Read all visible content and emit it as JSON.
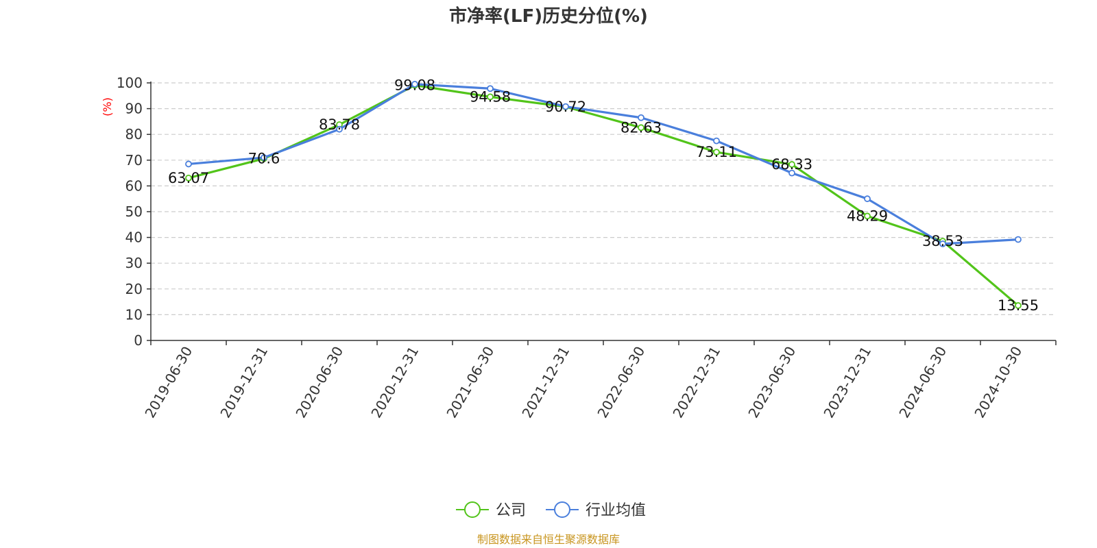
{
  "chart_data": {
    "type": "line",
    "title": "市净率(LF)历史分位(%)",
    "ylabel": "(%)",
    "ylim": [
      0,
      100
    ],
    "y_ticks": [
      0,
      10,
      20,
      30,
      40,
      50,
      60,
      70,
      80,
      90,
      100
    ],
    "grid": true,
    "x": [
      "2019-06-30",
      "2019-12-31",
      "2020-06-30",
      "2020-12-31",
      "2021-06-30",
      "2021-12-31",
      "2022-06-30",
      "2022-12-31",
      "2023-06-30",
      "2023-12-31",
      "2024-06-30",
      "2024-10-30"
    ],
    "series": [
      {
        "name": "公司",
        "color": "#52c41a",
        "values": [
          63.07,
          70.6,
          83.78,
          99.08,
          94.58,
          90.72,
          82.63,
          73.11,
          68.33,
          48.29,
          38.53,
          13.55
        ],
        "labels": [
          "63.07",
          "70.6",
          "83.78",
          "99.08",
          "94.58",
          "90.72",
          "82.63",
          "73.11",
          "68.33",
          "48.29",
          "38.53",
          "13.55"
        ]
      },
      {
        "name": "行业均值",
        "color": "#4a7fdc",
        "values": [
          68.5,
          71.0,
          82.0,
          99.5,
          97.8,
          90.8,
          86.5,
          77.5,
          65.0,
          55.0,
          37.5,
          39.2
        ]
      }
    ],
    "legend_position": "bottom-center"
  },
  "footer": "制图数据来自恒生聚源数据库"
}
